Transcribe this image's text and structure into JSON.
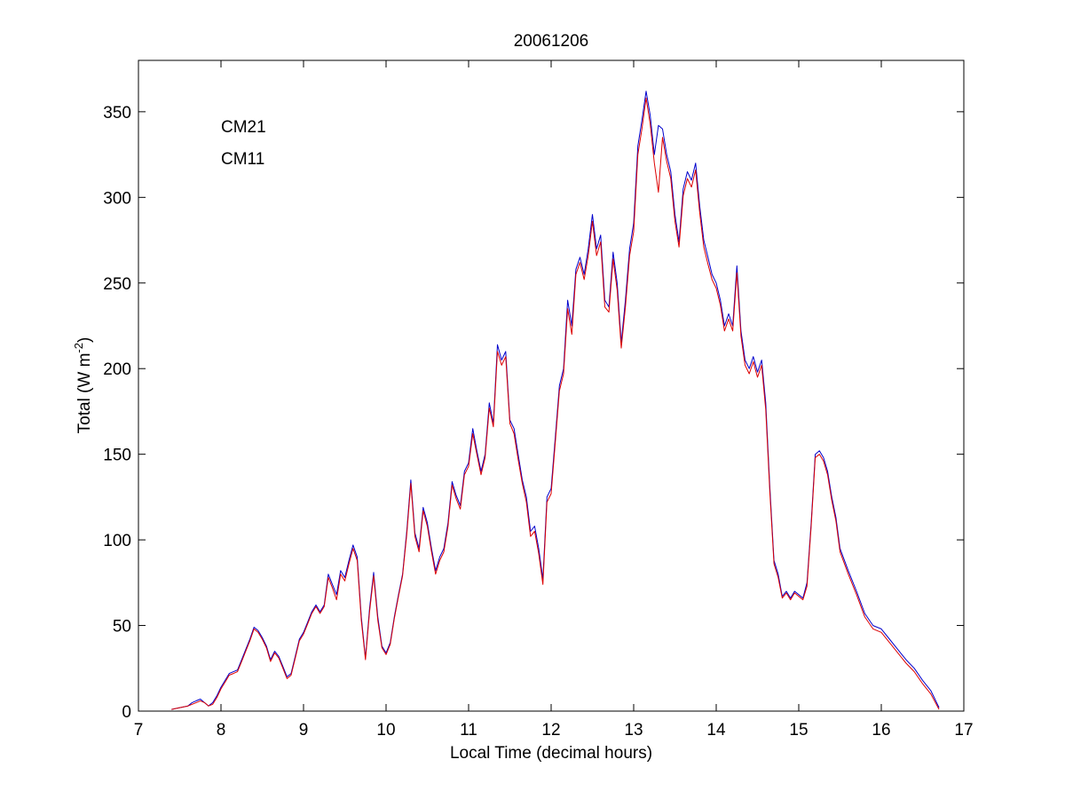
{
  "chart_data": {
    "type": "line",
    "title": "20061206",
    "xlabel": "Local Time (decimal hours)",
    "ylabel_main": "Total (W m",
    "ylabel_sup": "-2",
    "ylabel_close": ")",
    "xlim": [
      7,
      17
    ],
    "ylim": [
      0,
      380
    ],
    "xticks": [
      7,
      8,
      9,
      10,
      11,
      12,
      13,
      14,
      15,
      16,
      17
    ],
    "yticks": [
      0,
      50,
      100,
      150,
      200,
      250,
      300,
      350
    ],
    "grid": false,
    "legend_position": "top-left",
    "series": [
      {
        "name": "CM21",
        "color": "#0000cc",
        "x": [
          7.4,
          7.5,
          7.6,
          7.65,
          7.7,
          7.75,
          7.8,
          7.85,
          7.9,
          7.95,
          8.0,
          8.05,
          8.1,
          8.15,
          8.2,
          8.25,
          8.3,
          8.35,
          8.4,
          8.45,
          8.5,
          8.55,
          8.6,
          8.65,
          8.7,
          8.75,
          8.8,
          8.85,
          8.9,
          8.95,
          9.0,
          9.05,
          9.1,
          9.15,
          9.2,
          9.25,
          9.3,
          9.35,
          9.4,
          9.45,
          9.5,
          9.55,
          9.6,
          9.65,
          9.7,
          9.75,
          9.8,
          9.85,
          9.9,
          9.95,
          10.0,
          10.05,
          10.1,
          10.15,
          10.2,
          10.25,
          10.3,
          10.35,
          10.4,
          10.45,
          10.5,
          10.55,
          10.6,
          10.65,
          10.7,
          10.75,
          10.8,
          10.85,
          10.9,
          10.95,
          11.0,
          11.05,
          11.1,
          11.15,
          11.2,
          11.25,
          11.3,
          11.35,
          11.4,
          11.45,
          11.5,
          11.55,
          11.6,
          11.65,
          11.7,
          11.75,
          11.8,
          11.85,
          11.9,
          11.95,
          12.0,
          12.05,
          12.1,
          12.15,
          12.2,
          12.25,
          12.3,
          12.35,
          12.4,
          12.45,
          12.5,
          12.55,
          12.6,
          12.65,
          12.7,
          12.75,
          12.8,
          12.85,
          12.9,
          12.95,
          13.0,
          13.05,
          13.1,
          13.15,
          13.2,
          13.25,
          13.3,
          13.35,
          13.4,
          13.45,
          13.5,
          13.55,
          13.6,
          13.65,
          13.7,
          13.75,
          13.8,
          13.85,
          13.9,
          13.95,
          14.0,
          14.05,
          14.1,
          14.15,
          14.2,
          14.25,
          14.3,
          14.35,
          14.4,
          14.45,
          14.5,
          14.55,
          14.6,
          14.65,
          14.7,
          14.75,
          14.8,
          14.85,
          14.9,
          14.95,
          15.0,
          15.05,
          15.1,
          15.15,
          15.2,
          15.25,
          15.3,
          15.35,
          15.4,
          15.45,
          15.5,
          15.6,
          15.7,
          15.8,
          15.9,
          16.0,
          16.1,
          16.2,
          16.3,
          16.4,
          16.5,
          16.6,
          16.7
        ],
        "y": [
          1,
          2,
          3,
          5,
          6,
          7,
          5,
          3,
          5,
          9,
          14,
          18,
          22,
          23,
          24,
          30,
          36,
          42,
          49,
          47,
          43,
          38,
          30,
          35,
          32,
          26,
          20,
          22,
          32,
          42,
          46,
          52,
          58,
          62,
          58,
          62,
          80,
          74,
          68,
          82,
          78,
          88,
          97,
          90,
          55,
          31,
          60,
          81,
          55,
          38,
          34,
          40,
          55,
          68,
          80,
          105,
          135,
          104,
          95,
          119,
          110,
          95,
          82,
          90,
          95,
          110,
          134,
          126,
          120,
          140,
          145,
          165,
          152,
          140,
          150,
          180,
          168,
          214,
          205,
          210,
          170,
          165,
          150,
          135,
          125,
          105,
          108,
          95,
          77,
          125,
          130,
          160,
          190,
          200,
          240,
          225,
          258,
          265,
          255,
          270,
          290,
          270,
          278,
          240,
          236,
          268,
          250,
          215,
          240,
          270,
          285,
          330,
          345,
          362,
          348,
          325,
          342,
          340,
          325,
          315,
          290,
          274,
          305,
          315,
          310,
          320,
          295,
          275,
          265,
          255,
          250,
          240,
          225,
          232,
          225,
          260,
          222,
          205,
          200,
          207,
          198,
          205,
          180,
          130,
          88,
          80,
          67,
          70,
          66,
          70,
          68,
          66,
          75,
          110,
          150,
          152,
          148,
          140,
          125,
          113,
          95,
          82,
          70,
          57,
          50,
          48,
          42,
          36,
          30,
          25,
          18,
          12,
          2
        ]
      },
      {
        "name": "CM11",
        "color": "#dd0000",
        "x": [
          7.4,
          7.5,
          7.6,
          7.65,
          7.7,
          7.75,
          7.8,
          7.85,
          7.9,
          7.95,
          8.0,
          8.05,
          8.1,
          8.15,
          8.2,
          8.25,
          8.3,
          8.35,
          8.4,
          8.45,
          8.5,
          8.55,
          8.6,
          8.65,
          8.7,
          8.75,
          8.8,
          8.85,
          8.9,
          8.95,
          9.0,
          9.05,
          9.1,
          9.15,
          9.2,
          9.25,
          9.3,
          9.35,
          9.4,
          9.45,
          9.5,
          9.55,
          9.6,
          9.65,
          9.7,
          9.75,
          9.8,
          9.85,
          9.9,
          9.95,
          10.0,
          10.05,
          10.1,
          10.15,
          10.2,
          10.25,
          10.3,
          10.35,
          10.4,
          10.45,
          10.5,
          10.55,
          10.6,
          10.65,
          10.7,
          10.75,
          10.8,
          10.85,
          10.9,
          10.95,
          11.0,
          11.05,
          11.1,
          11.15,
          11.2,
          11.25,
          11.3,
          11.35,
          11.4,
          11.45,
          11.5,
          11.55,
          11.6,
          11.65,
          11.7,
          11.75,
          11.8,
          11.85,
          11.9,
          11.95,
          12.0,
          12.05,
          12.1,
          12.15,
          12.2,
          12.25,
          12.3,
          12.35,
          12.4,
          12.45,
          12.5,
          12.55,
          12.6,
          12.65,
          12.7,
          12.75,
          12.8,
          12.85,
          12.9,
          12.95,
          13.0,
          13.05,
          13.1,
          13.15,
          13.2,
          13.25,
          13.3,
          13.35,
          13.4,
          13.45,
          13.5,
          13.55,
          13.6,
          13.65,
          13.7,
          13.75,
          13.8,
          13.85,
          13.9,
          13.95,
          14.0,
          14.05,
          14.1,
          14.15,
          14.2,
          14.25,
          14.3,
          14.35,
          14.4,
          14.45,
          14.5,
          14.55,
          14.6,
          14.65,
          14.7,
          14.75,
          14.8,
          14.85,
          14.9,
          14.95,
          15.0,
          15.05,
          15.1,
          15.15,
          15.2,
          15.25,
          15.3,
          15.35,
          15.4,
          15.45,
          15.5,
          15.6,
          15.7,
          15.8,
          15.9,
          16.0,
          16.1,
          16.2,
          16.3,
          16.4,
          16.5,
          16.6,
          16.7
        ],
        "y": [
          1,
          2,
          3,
          4,
          5,
          6,
          5,
          3,
          4,
          8,
          13,
          17,
          21,
          22,
          23,
          29,
          35,
          41,
          48,
          46,
          42,
          37,
          29,
          34,
          31,
          25,
          19,
          21,
          31,
          41,
          45,
          51,
          57,
          61,
          57,
          61,
          78,
          72,
          65,
          80,
          76,
          86,
          95,
          88,
          53,
          30,
          58,
          79,
          53,
          37,
          33,
          39,
          54,
          67,
          79,
          103,
          133,
          102,
          93,
          117,
          108,
          93,
          80,
          88,
          93,
          108,
          132,
          124,
          118,
          138,
          143,
          162,
          150,
          138,
          148,
          177,
          166,
          210,
          202,
          207,
          168,
          162,
          147,
          133,
          122,
          102,
          105,
          92,
          74,
          122,
          127,
          157,
          187,
          197,
          235,
          220,
          255,
          262,
          252,
          266,
          286,
          266,
          274,
          236,
          233,
          264,
          246,
          212,
          236,
          266,
          280,
          325,
          340,
          358,
          343,
          320,
          303,
          335,
          321,
          311,
          286,
          271,
          301,
          311,
          306,
          316,
          291,
          271,
          261,
          252,
          247,
          237,
          222,
          229,
          222,
          256,
          219,
          202,
          197,
          204,
          195,
          202,
          176,
          127,
          86,
          78,
          66,
          69,
          65,
          69,
          67,
          65,
          73,
          108,
          148,
          150,
          146,
          138,
          123,
          111,
          93,
          80,
          68,
          55,
          48,
          46,
          40,
          34,
          28,
          23,
          16,
          10,
          1
        ]
      }
    ]
  }
}
